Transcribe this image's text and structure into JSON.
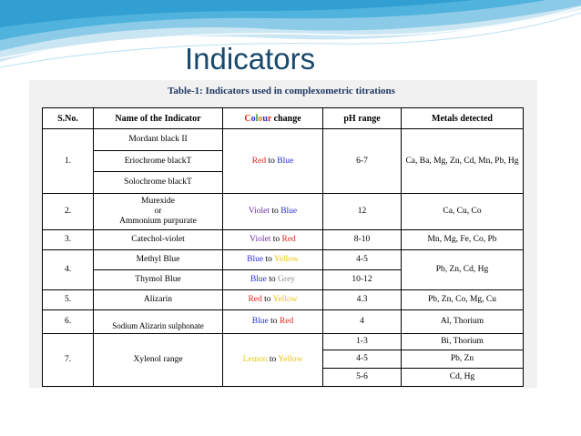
{
  "slide": {
    "title": "Indicators"
  },
  "table": {
    "caption": "Table-1: Indicators used in complexometric titrations",
    "headers": {
      "sno": "S.No.",
      "name": "Name of the Indicator",
      "colour_part1": "Colour",
      "colour_part2": " change",
      "ph": "pH range",
      "metals": "Metals detected"
    },
    "rows": [
      {
        "sno": "1.",
        "names": [
          "Mordant black II",
          "Eriochrome blackT",
          "Solochrome blackT"
        ],
        "colour": {
          "from": "Red",
          "sep": " to ",
          "to": "Blue"
        },
        "ph": "6-7",
        "metals": "Ca, Ba, Mg, Zn, Cd, Mn, Pb, Hg"
      },
      {
        "sno": "2.",
        "name_lines": [
          "Murexide",
          "or",
          "Ammonium purpurate"
        ],
        "colour": {
          "from": "Violet",
          "sep": " to ",
          "to": "Blue"
        },
        "ph": "12",
        "metals": "Ca, Cu, Co"
      },
      {
        "sno": "3.",
        "name": "Catechol-violet",
        "colour": {
          "from": "Violet",
          "sep": " to ",
          "to": "Red"
        },
        "ph": "8-10",
        "metals": "Mn, Mg, Fe, Co, Pb"
      },
      {
        "sno": "4.",
        "subrows": [
          {
            "name": "Methyl Blue",
            "colour": {
              "from": "Blue",
              "sep": " to ",
              "to": "Yellow"
            },
            "ph": "4-5"
          },
          {
            "name": "Thymol Blue",
            "colour": {
              "from": "Blue",
              "sep": " to ",
              "to": "Grey"
            },
            "ph": "10-12"
          }
        ],
        "metals": "Pb, Zn, Cd, Hg"
      },
      {
        "sno": "5.",
        "name": "Alizarin",
        "colour": {
          "from": "Red",
          "sep": " to ",
          "to": "Yellow"
        },
        "ph": "4.3",
        "metals": "Pb, Zn, Co, Mg, Cu"
      },
      {
        "sno": "6.",
        "name": "Sodium Alizarin sulphonate",
        "colour": {
          "from": "Blue",
          "sep": " to ",
          "to": "Red"
        },
        "ph": "4",
        "metals": "Al, Thorium"
      },
      {
        "sno": "7.",
        "name": "Xylenol range",
        "colour": {
          "from": "Lemon",
          "sep": " to ",
          "to": "Yellow"
        },
        "subrows": [
          {
            "ph": "1-3",
            "metals": "Bi, Thorium"
          },
          {
            "ph": "4-5",
            "metals": "Pb, Zn"
          },
          {
            "ph": "5-6",
            "metals": "Cd, Hg"
          }
        ]
      }
    ]
  },
  "colors": {
    "Red": "#e0251b",
    "Blue": "#2a2fd6",
    "Yellow": "#eec312",
    "Grey": "#8c8c8c",
    "Violet": "#6a2da2",
    "Lemon": "#dccf15",
    "title": "#17486d",
    "caption": "#1f3864",
    "colour_word": [
      "#e0251b",
      "#2a2fd6",
      "#2e8b3a",
      "#e07a1b",
      "#2a2fd6",
      "#e0251b"
    ]
  }
}
